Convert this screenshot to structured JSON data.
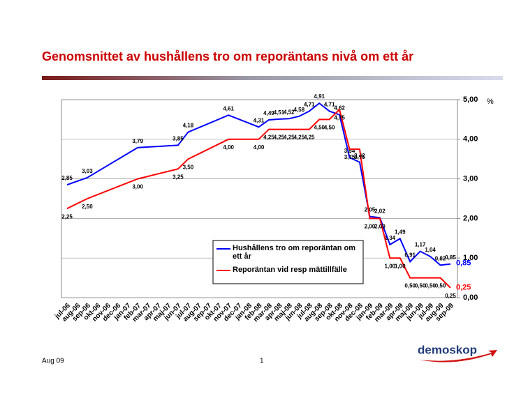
{
  "chart_data": {
    "type": "line",
    "title": "Genomsnittet av hushållens tro om reporäntans nivå om ett år",
    "unit": "%",
    "categories": [
      "jul-06",
      "aug-06",
      "sep-06",
      "okt-06",
      "nov-06",
      "dec-06",
      "jan-07",
      "feb-07",
      "mar-07",
      "apr-07",
      "maj-07",
      "jun-07",
      "jul-07",
      "aug-07",
      "sep-07",
      "okt-07",
      "nov-07",
      "dec-07",
      "jan-08",
      "feb-08",
      "mar-08",
      "apr-08",
      "maj-08",
      "jun-08",
      "jul-08",
      "aug-08",
      "sep-08",
      "okt-08",
      "nov-08",
      "dec-08",
      "jan-09",
      "feb-09",
      "mar-09",
      "apr-09",
      "maj-09",
      "jun-09",
      "jul-09",
      "aug-09",
      "sep-09"
    ],
    "series": [
      {
        "name": "Hushållens tro om reporäntan om ett år",
        "color": "#0000ff",
        "x": [
          "jul-06",
          "sep-06",
          "feb-07",
          "jun-07",
          "jul-07",
          "nov-07",
          "feb-08",
          "mar-08",
          "apr-08",
          "maj-08",
          "jun-08",
          "jul-08",
          "aug-08",
          "sep-08",
          "okt-08",
          "nov-08",
          "dec-08",
          "jan-09",
          "feb-09",
          "mar-09",
          "apr-09",
          "maj-09",
          "jun-09",
          "jul-09",
          "aug-09",
          "sep-09"
        ],
        "values": [
          2.85,
          3.03,
          3.79,
          3.85,
          4.18,
          4.61,
          4.31,
          4.49,
          4.51,
          4.52,
          4.58,
          4.71,
          4.91,
          4.71,
          4.62,
          3.54,
          3.42,
          2.05,
          2.02,
          1.34,
          1.49,
          0.91,
          1.17,
          1.04,
          0.82,
          0.85
        ],
        "value_labels": [
          "2,85",
          "3,03",
          "3,79",
          "3,85",
          "4,18",
          "4,61",
          "4,31",
          "4,49",
          "4,51",
          "4,52",
          "4,58",
          "4,71",
          "4,91",
          "4,71",
          "4,62",
          "3,54",
          "3,42",
          "2,05",
          "2,02",
          "1,34",
          "1,49",
          "0,91",
          "1,17",
          "1,04",
          "0,82",
          "0,85"
        ]
      },
      {
        "name": "Reporäntan vid resp mättillfälle",
        "color": "#ff0000",
        "x": [
          "jul-06",
          "sep-06",
          "feb-07",
          "jun-07",
          "jul-07",
          "nov-07",
          "feb-08",
          "mar-08",
          "apr-08",
          "maj-08",
          "jun-08",
          "jul-08",
          "aug-08",
          "sep-08",
          "okt-08",
          "nov-08",
          "dec-08",
          "jan-09",
          "feb-09",
          "mar-09",
          "apr-09",
          "maj-09",
          "jun-09",
          "jul-09",
          "aug-09",
          "sep-09"
        ],
        "values": [
          2.25,
          2.5,
          3.0,
          3.25,
          3.5,
          4.0,
          4.0,
          4.25,
          4.25,
          4.25,
          4.25,
          4.25,
          4.5,
          4.5,
          4.75,
          3.75,
          3.75,
          2.0,
          2.0,
          1.0,
          1.0,
          0.5,
          0.5,
          0.5,
          0.5,
          0.25
        ],
        "value_labels": [
          "2,25",
          "2,50",
          "3,00",
          "3,25",
          "3,50",
          "4,00",
          "4,00",
          "4,25",
          "4,25",
          "4,25",
          "4,25",
          "4,25",
          "4,50",
          "4,50",
          "4,75",
          "3,75",
          "3,75",
          "2,00",
          "2,00",
          "1,00",
          "1,00",
          "0,50",
          "0,50",
          "0,50",
          "0,50",
          "0,25"
        ]
      }
    ],
    "ylim": [
      0,
      5
    ],
    "yticks": [
      {
        "value": 0,
        "label": "0,00"
      },
      {
        "value": 1,
        "label": "1,00"
      },
      {
        "value": 2,
        "label": "2,00"
      },
      {
        "value": 3,
        "label": "3,00"
      },
      {
        "value": 4,
        "label": "4,00"
      },
      {
        "value": 5,
        "label": "5,00"
      }
    ],
    "grid": true
  },
  "footer": {
    "date": "Aug 09",
    "page": "1",
    "logo": "demoskop"
  }
}
